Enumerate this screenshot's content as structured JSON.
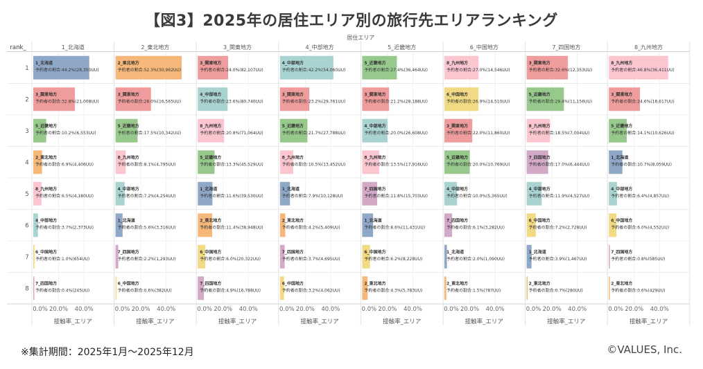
{
  "title": "【図3】2025年の居住エリア別の旅行先エリアランキング",
  "footnote": "※集計期間：2025年1月〜2025年12月",
  "credit": "©VALUES, Inc.",
  "colors": {
    "北海道": "#8fa8c8",
    "東北地方": "#f5b87a",
    "関東地方": "#ef9c9c",
    "中部地方": "#a9d3d1",
    "近畿地方": "#97c98c",
    "中国地方": "#f2da84",
    "四国地方": "#d3a9c8",
    "九州地方": "#fbc6cf"
  },
  "chart_data": {
    "type": "bar",
    "title": "【図3】2025年の居住エリア別の旅行先エリアランキング",
    "column_group_label": "居住エリア",
    "row_axis_label": "rank_",
    "xlabel": "接触率_エリア",
    "xlim": [
      0,
      52
    ],
    "xticks": [
      "0.0%",
      "20.0%",
      "40.0%"
    ],
    "ranks": [
      "1",
      "2",
      "3",
      "4",
      "5",
      "6",
      "7",
      "8"
    ],
    "value_prefix": "予約者の割合:",
    "panels": [
      {
        "header": "1_北海道",
        "bars": [
          {
            "area": "北海道",
            "label": "1_北海道",
            "value": 44.2,
            "text": "44.2%(28,350UU)"
          },
          {
            "area": "関東地方",
            "label": "3_関東地方",
            "value": 32.8,
            "text": "32.8%(21,008UU)"
          },
          {
            "area": "近畿地方",
            "label": "5_近畿地方",
            "value": 10.2,
            "text": "10.2%(6,553UU)"
          },
          {
            "area": "東北地方",
            "label": "2_東北地方",
            "value": 6.9,
            "text": "6.9%(4,406UU)"
          },
          {
            "area": "九州地方",
            "label": "8_九州地方",
            "value": 6.5,
            "text": "6.5%(4,180UU)"
          },
          {
            "area": "中部地方",
            "label": "4_中部地方",
            "value": 3.7,
            "text": "3.7%(2,373UU)"
          },
          {
            "area": "中国地方",
            "label": "6_中国地方",
            "value": 1.0,
            "text": "1.0%(654UU)"
          },
          {
            "area": "四国地方",
            "label": "7_四国地方",
            "value": 0.4,
            "text": "0.4%(245UU)"
          }
        ]
      },
      {
        "header": "2_東北地方",
        "bars": [
          {
            "area": "東北地方",
            "label": "2_東北地方",
            "value": 52.3,
            "text": "52.3%(30,962UU)"
          },
          {
            "area": "関東地方",
            "label": "3_関東地方",
            "value": 28.0,
            "text": "28.0%(16,565UU)"
          },
          {
            "area": "近畿地方",
            "label": "5_近畿地方",
            "value": 17.5,
            "text": "17.5%(10,342UU)"
          },
          {
            "area": "九州地方",
            "label": "8_九州地方",
            "value": 8.1,
            "text": "8.1%(4,795UU)"
          },
          {
            "area": "中部地方",
            "label": "4_中部地方",
            "value": 7.2,
            "text": "7.2%(4,254UU)"
          },
          {
            "area": "北海道",
            "label": "1_北海道",
            "value": 5.6,
            "text": "5.6%(3,316UU)"
          },
          {
            "area": "四国地方",
            "label": "7_四国地方",
            "value": 2.2,
            "text": "2.2%(1,293UU)"
          },
          {
            "area": "中国地方",
            "label": "6_中国地方",
            "value": 0.6,
            "text": "0.6%(382UU)"
          }
        ]
      },
      {
        "header": "3_関東地方",
        "bars": [
          {
            "area": "関東地方",
            "label": "3_関東地方",
            "value": 24.0,
            "text": "24.0%(82,107UU)"
          },
          {
            "area": "中部地方",
            "label": "4_中部地方",
            "value": 23.6,
            "text": "23.6%(80,740UU)"
          },
          {
            "area": "九州地方",
            "label": "8_九州地方",
            "value": 20.8,
            "text": "20.8%(71,064UU)"
          },
          {
            "area": "近畿地方",
            "label": "5_近畿地方",
            "value": 13.3,
            "text": "13.3%(45,529UU)"
          },
          {
            "area": "北海道",
            "label": "1_北海道",
            "value": 11.6,
            "text": "11.6%(39,530UU)"
          },
          {
            "area": "東北地方",
            "label": "2_東北地方",
            "value": 11.4,
            "text": "11.4%(38,948UU)"
          },
          {
            "area": "中国地方",
            "label": "6_中国地方",
            "value": 6.0,
            "text": "6.0%(20,322UU)"
          },
          {
            "area": "四国地方",
            "label": "7_四国地方",
            "value": 4.9,
            "text": "4.9%(16,788UU)"
          }
        ]
      },
      {
        "header": "4_中部地方",
        "bars": [
          {
            "area": "中部地方",
            "label": "4_中部地方",
            "value": 42.2,
            "text": "42.2%(54,060UU)"
          },
          {
            "area": "関東地方",
            "label": "3_関東地方",
            "value": 23.2,
            "text": "23.2%(29,761UU)"
          },
          {
            "area": "近畿地方",
            "label": "5_近畿地方",
            "value": 21.7,
            "text": "21.7%(27,788UU)"
          },
          {
            "area": "九州地方",
            "label": "8_九州地方",
            "value": 10.5,
            "text": "10.5%(13,452UU)"
          },
          {
            "area": "北海道",
            "label": "1_北海道",
            "value": 7.9,
            "text": "7.9%(10,128UU)"
          },
          {
            "area": "東北地方",
            "label": "2_東北地方",
            "value": 4.2,
            "text": "4.2%(5,409UU)"
          },
          {
            "area": "四国地方",
            "label": "7_四国地方",
            "value": 3.7,
            "text": "3.7%(4,695UU)"
          },
          {
            "area": "中国地方",
            "label": "6_中国地方",
            "value": 3.2,
            "text": "3.2%(4,062UU)"
          }
        ]
      },
      {
        "header": "5_近畿地方",
        "bars": [
          {
            "area": "近畿地方",
            "label": "5_近畿地方",
            "value": 27.4,
            "text": "27.4%(36,464UU)"
          },
          {
            "area": "関東地方",
            "label": "3_関東地方",
            "value": 21.2,
            "text": "21.2%(28,188UU)"
          },
          {
            "area": "中部地方",
            "label": "4_中部地方",
            "value": 20.0,
            "text": "20.0%(26,608UU)"
          },
          {
            "area": "九州地方",
            "label": "8_九州地方",
            "value": 13.5,
            "text": "13.5%(17,916UU)"
          },
          {
            "area": "四国地方",
            "label": "7_四国地方",
            "value": 11.8,
            "text": "11.8%(15,703UU)"
          },
          {
            "area": "北海道",
            "label": "1_北海道",
            "value": 8.6,
            "text": "8.6%(11,431UU)"
          },
          {
            "area": "中国地方",
            "label": "6_中国地方",
            "value": 6.2,
            "text": "6.2%(8,228UU)"
          },
          {
            "area": "東北地方",
            "label": "2_東北地方",
            "value": 4.3,
            "text": "4.3%(5,783UU)"
          }
        ]
      },
      {
        "header": "6_中国地方",
        "bars": [
          {
            "area": "九州地方",
            "label": "8_九州地方",
            "value": 27.0,
            "text": "27.0%(14,546UU)"
          },
          {
            "area": "中国地方",
            "label": "6_中国地方",
            "value": 26.9,
            "text": "26.9%(14,510UU)"
          },
          {
            "area": "関東地方",
            "label": "3_関東地方",
            "value": 22.0,
            "text": "22.0%(11,860UU)"
          },
          {
            "area": "近畿地方",
            "label": "5_近畿地方",
            "value": 20.0,
            "text": "20.0%(10,769UU)"
          },
          {
            "area": "中部地方",
            "label": "4_中部地方",
            "value": 10.0,
            "text": "10.0%(5,365UU)"
          },
          {
            "area": "四国地方",
            "label": "7_四国地方",
            "value": 6.1,
            "text": "6.1%(3,282UU)"
          },
          {
            "area": "北海道",
            "label": "1_北海道",
            "value": 2.0,
            "text": "2.0%(1,090UU)"
          },
          {
            "area": "東北地方",
            "label": "2_東北地方",
            "value": 1.5,
            "text": "1.5%(787UU)"
          }
        ]
      },
      {
        "header": "7_四国地方",
        "bars": [
          {
            "area": "関東地方",
            "label": "3_関東地方",
            "value": 32.6,
            "text": "32.6%(12,353UU)"
          },
          {
            "area": "近畿地方",
            "label": "5_近畿地方",
            "value": 29.4,
            "text": "29.4%(11,156UU)"
          },
          {
            "area": "九州地方",
            "label": "8_九州地方",
            "value": 18.5,
            "text": "18.5%(7,004UU)"
          },
          {
            "area": "四国地方",
            "label": "7_四国地方",
            "value": 17.0,
            "text": "17.0%(6,444UU)"
          },
          {
            "area": "中部地方",
            "label": "4_中部地方",
            "value": 11.9,
            "text": "11.9%(4,527UU)"
          },
          {
            "area": "中国地方",
            "label": "6_中国地方",
            "value": 7.2,
            "text": "7.2%(2,728UU)"
          },
          {
            "area": "北海道",
            "label": "1_北海道",
            "value": 3.9,
            "text": "3.9%(1,467UU)"
          },
          {
            "area": "東北地方",
            "label": "2_東北地方",
            "value": 0.7,
            "text": "0.7%(280UU)"
          }
        ]
      },
      {
        "header": "8_九州地方",
        "bars": [
          {
            "area": "九州地方",
            "label": "8_九州地方",
            "value": 46.8,
            "text": "46.8%(36,411UU)"
          },
          {
            "area": "関東地方",
            "label": "3_関東地方",
            "value": 24.6,
            "text": "24.6%(18,617UU)"
          },
          {
            "area": "近畿地方",
            "label": "5_近畿地方",
            "value": 14.1,
            "text": "14.1%(10,626UU)"
          },
          {
            "area": "北海道",
            "label": "1_北海道",
            "value": 10.7,
            "text": "10.7%(8,059UU)"
          },
          {
            "area": "中部地方",
            "label": "4_中部地方",
            "value": 6.4,
            "text": "6.4%(4,857UU)"
          },
          {
            "area": "中国地方",
            "label": "6_中国地方",
            "value": 6.0,
            "text": "6.0%(4,552UU)"
          },
          {
            "area": "四国地方",
            "label": "7_四国地方",
            "value": 0.8,
            "text": "0.8%(585UU)"
          },
          {
            "area": "東北地方",
            "label": "2_東北地方",
            "value": 0.6,
            "text": "0.6%(429UU)"
          }
        ]
      }
    ]
  }
}
